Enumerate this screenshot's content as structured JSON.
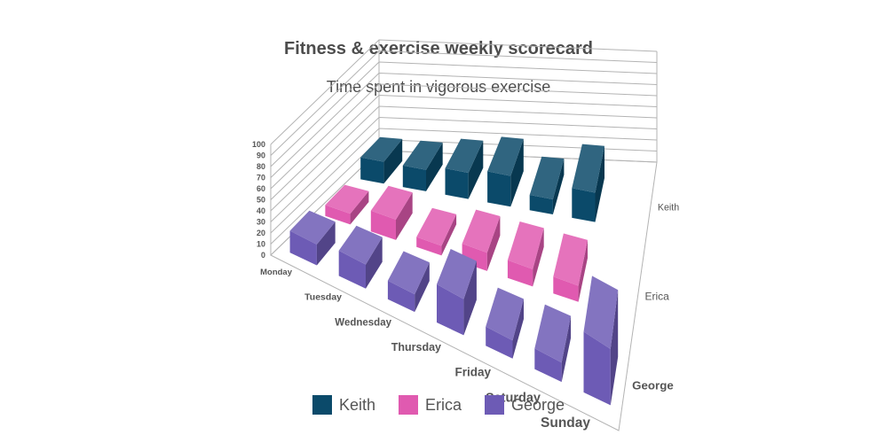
{
  "chart_data": {
    "type": "bar",
    "title": "Fitness & exercise weekly scorecard",
    "subtitle": "Time spent in vigorous exercise",
    "categories": [
      "Monday",
      "Tuesday",
      "Wednesday",
      "Thursday",
      "Friday",
      "Saturday",
      "Sunday"
    ],
    "series": [
      {
        "name": "Keith",
        "color": "#0b4a6a",
        "values": [
          20,
          20,
          25,
          30,
          15,
          30,
          0
        ]
      },
      {
        "name": "Erica",
        "color": "#e05ab0",
        "values": [
          10,
          20,
          10,
          20,
          20,
          20,
          0
        ]
      },
      {
        "name": "George",
        "color": "#6d5bb5",
        "values": [
          20,
          25,
          20,
          45,
          25,
          30,
          100
        ]
      }
    ],
    "ylim": [
      0,
      100
    ],
    "yticks": [
      0,
      10,
      20,
      30,
      40,
      50,
      60,
      70,
      80,
      90,
      100
    ],
    "view": "3d-column",
    "legend_position": "bottom"
  }
}
